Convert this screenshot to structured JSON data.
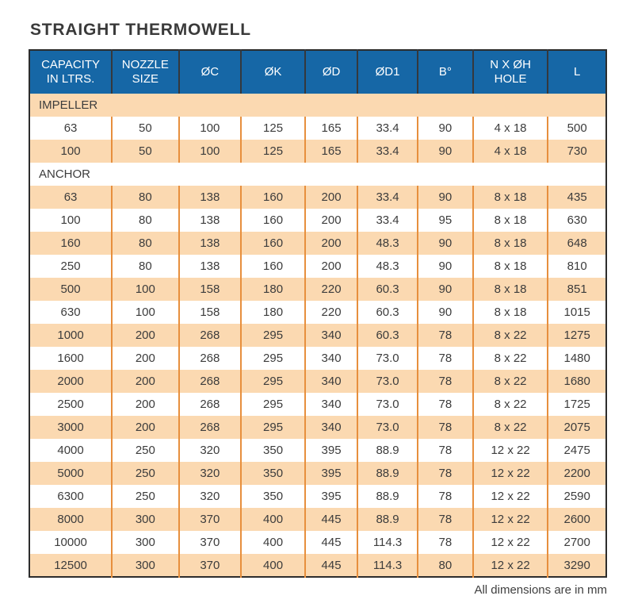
{
  "page_title": "STRAIGHT THERMOWELL",
  "footer_note": "All dimensions are in mm",
  "colors": {
    "header_bg": "#1667a6",
    "header_text": "#ffffff",
    "stripe": "#fbd9b1",
    "row_bg": "#ffffff",
    "divider": "#e78f3d",
    "table_border": "#2d2d2d",
    "text": "#3c3c3c"
  },
  "table": {
    "columns": [
      "CAPACITY IN LTRS.",
      "NOZZLE SIZE",
      "ØC",
      "ØK",
      "ØD",
      "ØD1",
      "B°",
      "N X ØH HOLE",
      "L"
    ],
    "sections": [
      {
        "label": "IMPELLER",
        "rows": [
          [
            "63",
            "50",
            "100",
            "125",
            "165",
            "33.4",
            "90",
            "4 x 18",
            "500"
          ],
          [
            "100",
            "50",
            "100",
            "125",
            "165",
            "33.4",
            "90",
            "4 x 18",
            "730"
          ]
        ]
      },
      {
        "label": "ANCHOR",
        "rows": [
          [
            "63",
            "80",
            "138",
            "160",
            "200",
            "33.4",
            "90",
            "8 x 18",
            "435"
          ],
          [
            "100",
            "80",
            "138",
            "160",
            "200",
            "33.4",
            "95",
            "8 x 18",
            "630"
          ],
          [
            "160",
            "80",
            "138",
            "160",
            "200",
            "48.3",
            "90",
            "8 x 18",
            "648"
          ],
          [
            "250",
            "80",
            "138",
            "160",
            "200",
            "48.3",
            "90",
            "8 x 18",
            "810"
          ],
          [
            "500",
            "100",
            "158",
            "180",
            "220",
            "60.3",
            "90",
            "8 x 18",
            "851"
          ],
          [
            "630",
            "100",
            "158",
            "180",
            "220",
            "60.3",
            "90",
            "8 x 18",
            "1015"
          ],
          [
            "1000",
            "200",
            "268",
            "295",
            "340",
            "60.3",
            "78",
            "8 x 22",
            "1275"
          ],
          [
            "1600",
            "200",
            "268",
            "295",
            "340",
            "73.0",
            "78",
            "8 x 22",
            "1480"
          ],
          [
            "2000",
            "200",
            "268",
            "295",
            "340",
            "73.0",
            "78",
            "8 x 22",
            "1680"
          ],
          [
            "2500",
            "200",
            "268",
            "295",
            "340",
            "73.0",
            "78",
            "8 x 22",
            "1725"
          ],
          [
            "3000",
            "200",
            "268",
            "295",
            "340",
            "73.0",
            "78",
            "8 x 22",
            "2075"
          ],
          [
            "4000",
            "250",
            "320",
            "350",
            "395",
            "88.9",
            "78",
            "12 x 22",
            "2475"
          ],
          [
            "5000",
            "250",
            "320",
            "350",
            "395",
            "88.9",
            "78",
            "12 x 22",
            "2200"
          ],
          [
            "6300",
            "250",
            "320",
            "350",
            "395",
            "88.9",
            "78",
            "12 x 22",
            "2590"
          ],
          [
            "8000",
            "300",
            "370",
            "400",
            "445",
            "88.9",
            "78",
            "12 x 22",
            "2600"
          ],
          [
            "10000",
            "300",
            "370",
            "400",
            "445",
            "114.3",
            "78",
            "12 x 22",
            "2700"
          ],
          [
            "12500",
            "300",
            "370",
            "400",
            "445",
            "114.3",
            "80",
            "12 x 22",
            "3290"
          ]
        ]
      }
    ]
  }
}
